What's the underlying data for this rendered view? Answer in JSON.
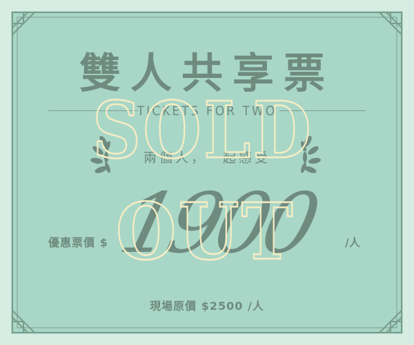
{
  "ticket": {
    "title": "雙人共享票",
    "subtitle": "TICKETS FOR TWO",
    "tagline": "兩個人，一起感受",
    "promo_label": "優惠票價 $",
    "promo_price": "1900",
    "promo_unit": "/人",
    "onsite_price": "現場原價 $2500 /人"
  },
  "stamp": {
    "line1": "SOLD",
    "line2": "OUT"
  },
  "colors": {
    "background": "#d7ede3",
    "card": "#a9d7c7",
    "ink": "#6f8b7f",
    "stamp_outline": "#f7edc4"
  }
}
